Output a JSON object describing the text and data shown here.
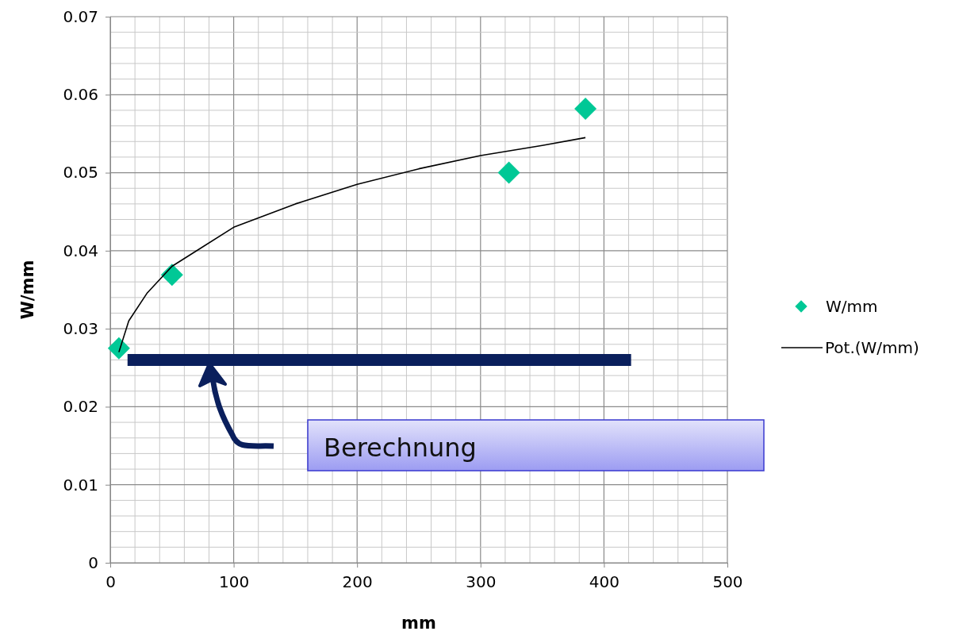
{
  "chart_data": {
    "type": "scatter",
    "xlabel": "mm",
    "ylabel": "W/mm",
    "xlim": [
      0,
      500
    ],
    "xticks": [
      0,
      100,
      200,
      300,
      400,
      500
    ],
    "ylim": [
      0,
      0.07
    ],
    "yticks": [
      0,
      0.01,
      0.02,
      0.03,
      0.04,
      0.05,
      0.06,
      0.07
    ],
    "grid": true,
    "legend": "right",
    "series": [
      {
        "name": "W/mm",
        "marker": "diamond",
        "color": "#00c896",
        "x": [
          7,
          50,
          323,
          385
        ],
        "values": [
          0.0275,
          0.0369,
          0.05,
          0.0582
        ]
      },
      {
        "name": "Pot.(W/mm)",
        "type": "line",
        "marker": "none",
        "color": "#000000",
        "x": [
          7,
          15,
          30,
          50,
          100,
          150,
          200,
          250,
          300,
          350,
          385
        ],
        "values": [
          0.027,
          0.031,
          0.0346,
          0.038,
          0.043,
          0.046,
          0.0485,
          0.0505,
          0.0522,
          0.0535,
          0.0545
        ]
      },
      {
        "type": "line",
        "marker": "none",
        "color": "#0a1f5c",
        "x": [
          14,
          422
        ],
        "values": [
          0.026,
          0.026
        ]
      }
    ],
    "annotations": [
      "Berechnung"
    ]
  }
}
